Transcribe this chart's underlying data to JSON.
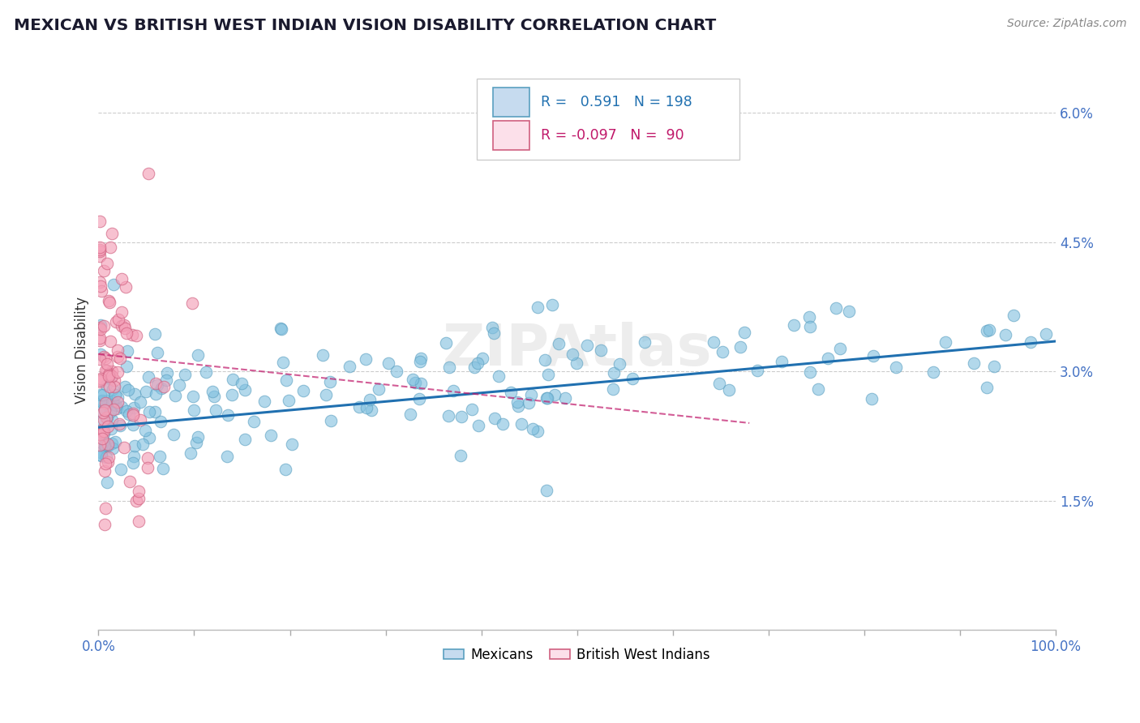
{
  "title": "MEXICAN VS BRITISH WEST INDIAN VISION DISABILITY CORRELATION CHART",
  "source": "Source: ZipAtlas.com",
  "ylabel": "Vision Disability",
  "xlim": [
    0,
    1.0
  ],
  "ylim": [
    0,
    0.065
  ],
  "xticks": [
    0.0,
    0.1,
    0.2,
    0.3,
    0.4,
    0.5,
    0.6,
    0.7,
    0.8,
    0.9,
    1.0
  ],
  "yticks": [
    0.0,
    0.015,
    0.03,
    0.045,
    0.06
  ],
  "yticklabels": [
    "",
    "1.5%",
    "3.0%",
    "4.5%",
    "6.0%"
  ],
  "blue_R": "0.591",
  "blue_N": "198",
  "pink_R": "-0.097",
  "pink_N": "90",
  "blue_color": "#7fbfdf",
  "blue_edge": "#5a9fc0",
  "pink_color": "#f4a0b8",
  "pink_edge": "#d06080",
  "blue_fill": "#c6dbef",
  "pink_fill": "#fce0ea",
  "blue_line_color": "#2070b0",
  "pink_line_color": "#c0186a",
  "watermark": "ZIPAtlas",
  "legend_label_blue": "Mexicans",
  "legend_label_pink": "British West Indians",
  "blue_trend_x": [
    0.0,
    1.0
  ],
  "blue_trend_y": [
    0.0235,
    0.0335
  ],
  "pink_trend_x": [
    0.0,
    0.68
  ],
  "pink_trend_y": [
    0.032,
    0.024
  ]
}
